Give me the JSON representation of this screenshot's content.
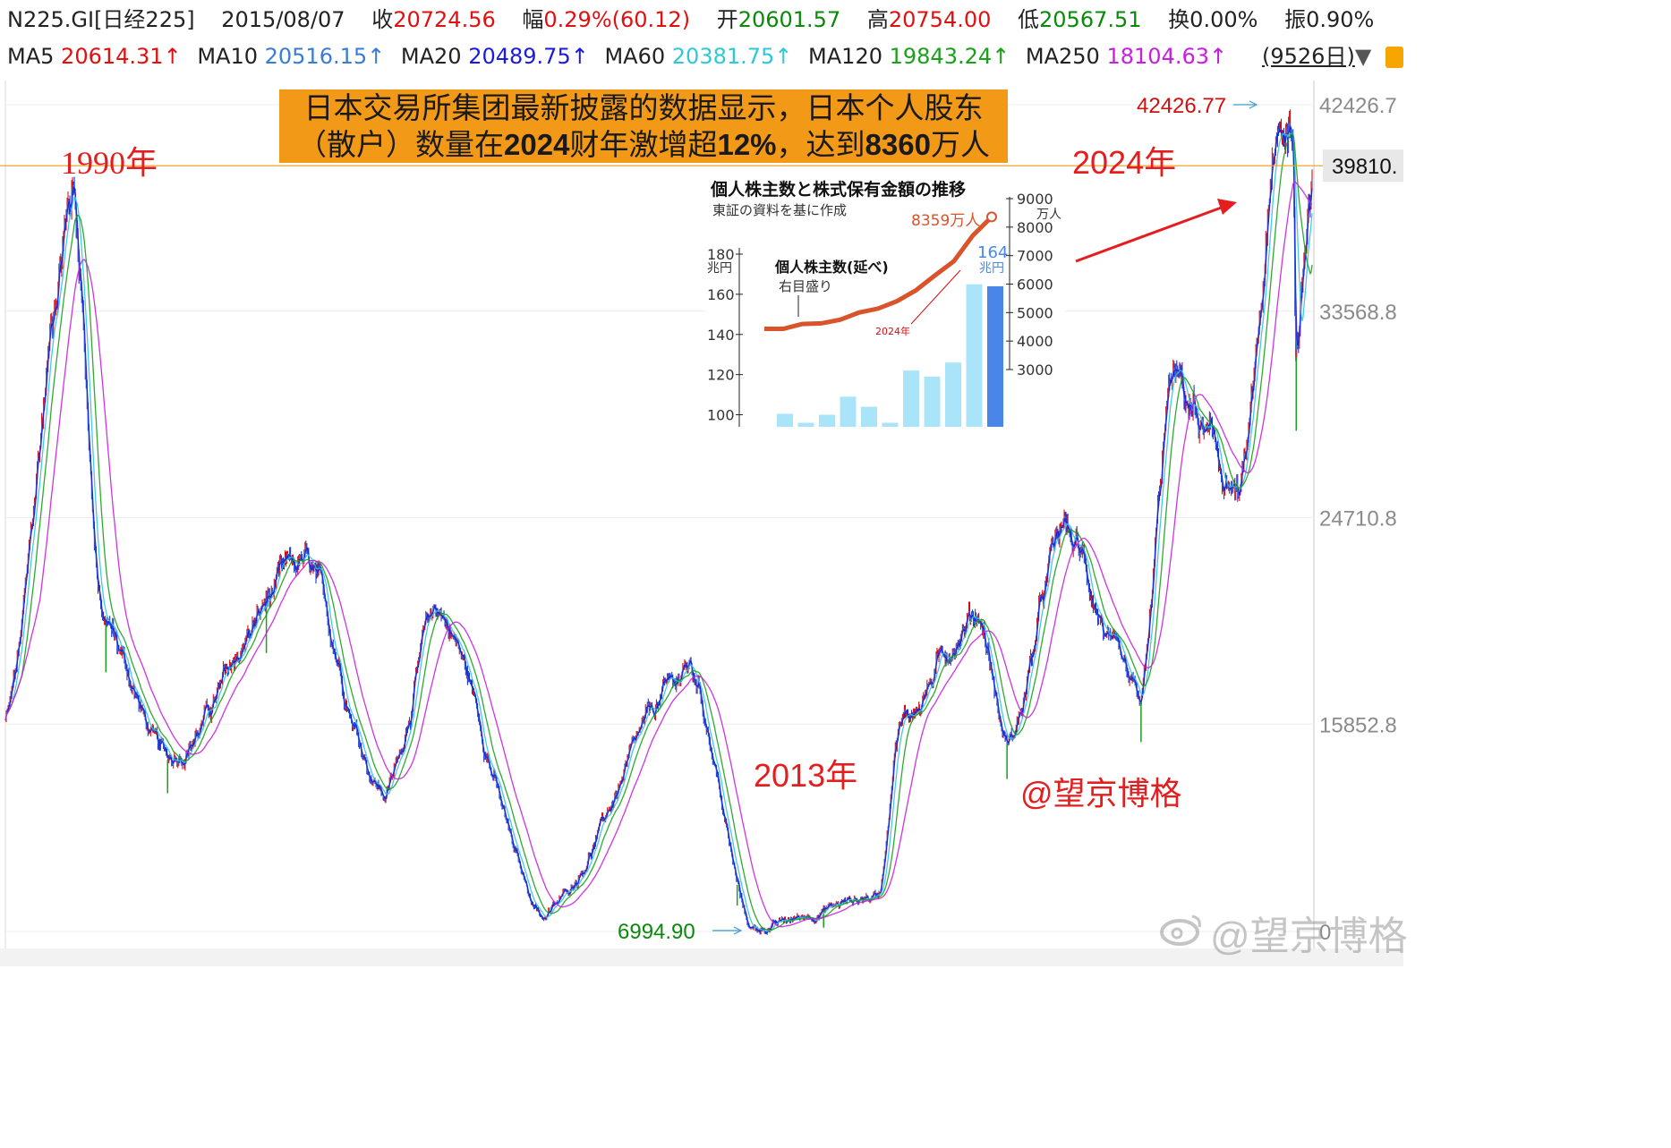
{
  "header": {
    "code": "N225.GI[日经225]",
    "date": "2015/08/07",
    "close_label": "收",
    "close_value": "20724.56",
    "change_label": "幅",
    "change_value": "0.29%(60.12)",
    "open_label": "开",
    "open_value": "20601.57",
    "high_label": "高",
    "high_value": "20754.00",
    "low_label": "低",
    "low_value": "20567.51",
    "turnover_label": "换",
    "turnover_value": "0.00%",
    "amplitude_label": "振",
    "amplitude_value": "0.90%",
    "ma": [
      {
        "name": "MA5",
        "value": "20614.31↑",
        "color": "#e01010"
      },
      {
        "name": "MA10",
        "value": "20516.15↑",
        "color": "#3a7bd5"
      },
      {
        "name": "MA20",
        "value": "20489.75↑",
        "color": "#1a1ae0"
      },
      {
        "name": "MA60",
        "value": "20381.75↑",
        "color": "#2ec8d8"
      },
      {
        "name": "MA120",
        "value": "19843.24↑",
        "color": "#1aa01a"
      },
      {
        "name": "MA250",
        "value": "18104.63↑",
        "color": "#c81ee0"
      }
    ],
    "days_label": "(9526日)"
  },
  "annotations": {
    "headline_line1": "日本交易所集团最新披露的数据显示，日本个人股东",
    "headline_line2_a": "（散户）数量在",
    "headline_line2_b": "2024",
    "headline_line2_c": "财年激增超",
    "headline_line2_d": "12%",
    "headline_line2_e": "，达到",
    "headline_line2_f": "8360",
    "headline_line2_g": "万人",
    "label_1990": "1990年",
    "label_2024": "2024年",
    "label_2013": "2013年",
    "credit": "@望京博格",
    "watermark": "@望京博格"
  },
  "inset": {
    "title": "個人株主数と株式保有金額の推移",
    "source": "東証の資料を基に作成",
    "line_label": "個人株主数(延べ)",
    "line_axis_note": "右目盛り",
    "line_end_label": "8359万人",
    "bar_end_label": "164",
    "bar_end_unit": "兆円",
    "year_label": "2024年",
    "left_unit": "兆円",
    "right_unit": "万人",
    "left_ticks": [
      "180",
      "160",
      "140",
      "120",
      "100"
    ],
    "right_ticks": [
      "9000",
      "8000",
      "7000",
      "6000",
      "5000",
      "4000",
      "3000"
    ],
    "bars": [
      100.5,
      96,
      100,
      109,
      104,
      96,
      122,
      119,
      126,
      165,
      164
    ],
    "line": [
      4430,
      4430,
      4600,
      4620,
      4750,
      5000,
      5140,
      5400,
      5780,
      6300,
      6800,
      7700,
      8359
    ],
    "colors": {
      "bar": "#a9e4f8",
      "bar_last": "#4a86e8",
      "line": "#d9532b"
    }
  },
  "chart_data": {
    "type": "candlestick",
    "title": "N225.GI[日经225]",
    "y_ticks": [
      "42426.7",
      "33568.8",
      "24710.8",
      "15852.8"
    ],
    "ylim": [
      6994.9,
      42426.77
    ],
    "current_price_marker": "39810.",
    "max_label": "42426.77",
    "min_label": "6994.90",
    "grid": true,
    "anchors": [
      {
        "x": "1988-01",
        "y": 16000
      },
      {
        "x": "1989-12",
        "y": 38916
      },
      {
        "x": "1990-10",
        "y": 20222
      },
      {
        "x": "1992-08",
        "y": 14309
      },
      {
        "x": "1996-06",
        "y": 22666
      },
      {
        "x": "1998-10",
        "y": 12879
      },
      {
        "x": "2000-04",
        "y": 20833
      },
      {
        "x": "2003-04",
        "y": 7607
      },
      {
        "x": "2007-06",
        "y": 18261
      },
      {
        "x": "2009-03",
        "y": 7054
      },
      {
        "x": "2012-10",
        "y": 8500
      },
      {
        "x": "2013-05",
        "y": 15942
      },
      {
        "x": "2015-08",
        "y": 20724
      },
      {
        "x": "2016-06",
        "y": 14952
      },
      {
        "x": "2018-01",
        "y": 24124
      },
      {
        "x": "2020-03",
        "y": 16552
      },
      {
        "x": "2021-02",
        "y": 30468
      },
      {
        "x": "2023-01",
        "y": 25661
      },
      {
        "x": "2024-03",
        "y": 40888
      },
      {
        "x": "2024-07",
        "y": 42224
      },
      {
        "x": "2024-08",
        "y": 31458
      },
      {
        "x": "2025-01",
        "y": 39810
      }
    ],
    "moving_averages": [
      "MA5",
      "MA10",
      "MA20",
      "MA60",
      "MA120",
      "MA250"
    ]
  }
}
